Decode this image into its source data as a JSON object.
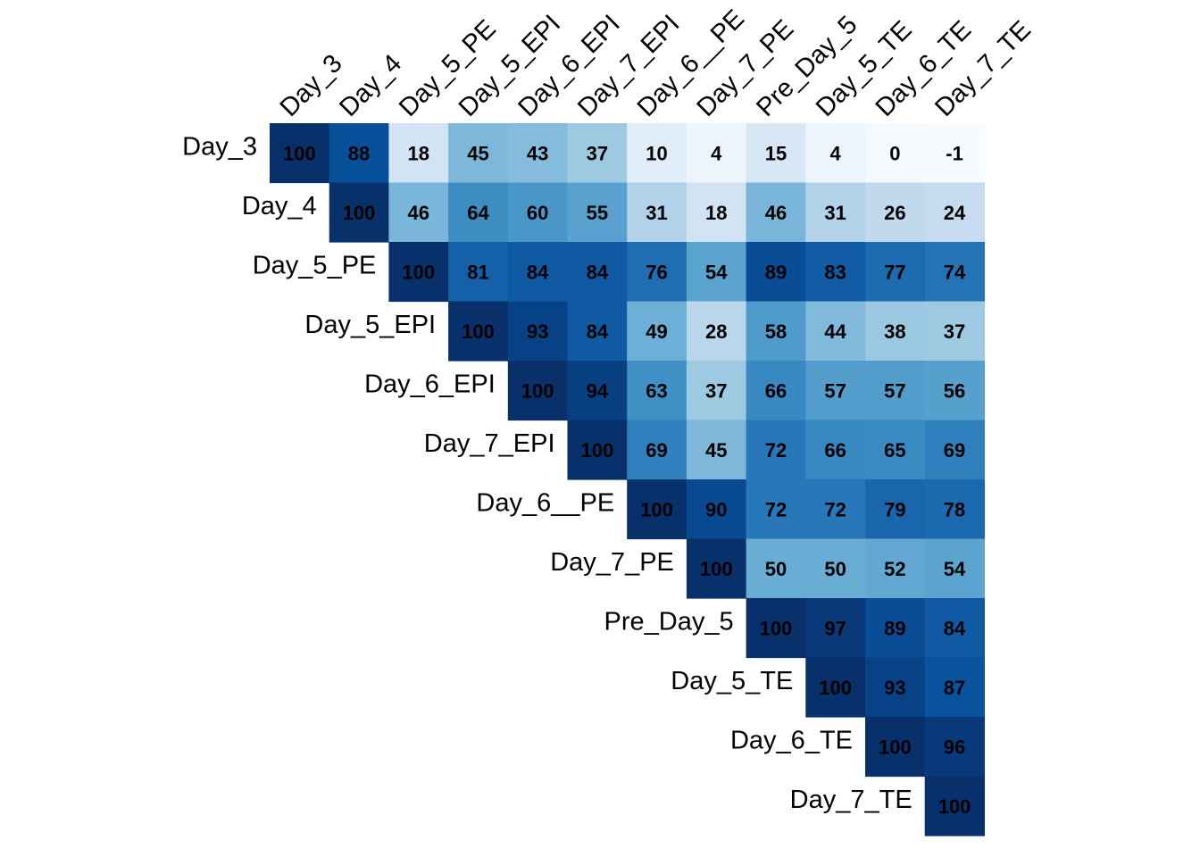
{
  "chart_data": {
    "type": "heatmap",
    "title": "",
    "xlabel": "",
    "ylabel": "",
    "legend": "none",
    "grid": false,
    "categories": [
      "Day_3",
      "Day_4",
      "Day_5_PE",
      "Day_5_EPI",
      "Day_6_EPI",
      "Day_7_EPI",
      "Day_6__PE",
      "Day_7_PE",
      "Pre_Day_5",
      "Day_5_TE",
      "Day_6_TE",
      "Day_7_TE"
    ],
    "values": [
      [
        100,
        88,
        18,
        45,
        43,
        37,
        10,
        4,
        15,
        4,
        0,
        -1
      ],
      [
        null,
        100,
        46,
        64,
        60,
        55,
        31,
        18,
        46,
        31,
        26,
        24
      ],
      [
        null,
        null,
        100,
        81,
        84,
        84,
        76,
        54,
        89,
        83,
        77,
        74
      ],
      [
        null,
        null,
        null,
        100,
        93,
        84,
        49,
        28,
        58,
        44,
        38,
        37
      ],
      [
        null,
        null,
        null,
        null,
        100,
        94,
        63,
        37,
        66,
        57,
        57,
        56
      ],
      [
        null,
        null,
        null,
        null,
        null,
        100,
        69,
        45,
        72,
        66,
        65,
        69
      ],
      [
        null,
        null,
        null,
        null,
        null,
        null,
        100,
        90,
        72,
        72,
        79,
        78
      ],
      [
        null,
        null,
        null,
        null,
        null,
        null,
        null,
        100,
        50,
        50,
        52,
        54
      ],
      [
        null,
        null,
        null,
        null,
        null,
        null,
        null,
        null,
        100,
        97,
        89,
        84
      ],
      [
        null,
        null,
        null,
        null,
        null,
        null,
        null,
        null,
        null,
        100,
        93,
        87
      ],
      [
        null,
        null,
        null,
        null,
        null,
        null,
        null,
        null,
        null,
        null,
        100,
        96
      ],
      [
        null,
        null,
        null,
        null,
        null,
        null,
        null,
        null,
        null,
        null,
        null,
        100
      ]
    ],
    "value_range": [
      -1,
      100
    ],
    "color_scale": [
      "#f7fbff",
      "#deebf7",
      "#c6dbef",
      "#9ecae1",
      "#6baed6",
      "#4292c6",
      "#2171b5",
      "#08519c",
      "#08306b"
    ],
    "shape": "upper-triangle"
  }
}
